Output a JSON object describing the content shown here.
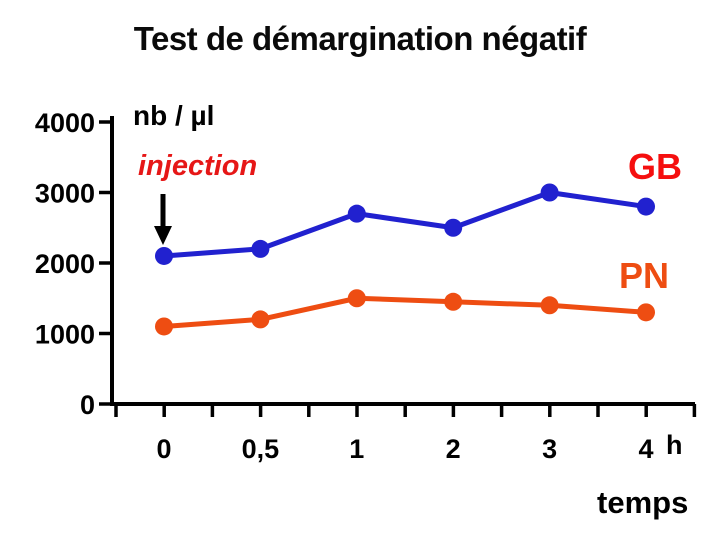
{
  "title": "Test de démargination négatif",
  "chart_data": {
    "type": "line",
    "x": [
      0,
      0.5,
      1,
      2,
      3,
      4
    ],
    "x_tick_labels": [
      "0",
      "0,5",
      "1",
      "2",
      "3",
      "4"
    ],
    "x_unit": "h",
    "xlabel": "temps",
    "ylabel": "nb / µl",
    "ylim": [
      0,
      4000
    ],
    "y_ticks": [
      0,
      1000,
      2000,
      3000,
      4000
    ],
    "y_tick_labels": [
      "0",
      "1000",
      "2000",
      "3000",
      "4000"
    ],
    "grid": false,
    "legend_position": "labels-at-line-ends",
    "series": [
      {
        "name": "GB",
        "line_color": "#2121cf",
        "label_color": "#f50f0f",
        "values": [
          2100,
          2200,
          2700,
          2500,
          3000,
          2800
        ]
      },
      {
        "name": "PN",
        "line_color": "#ee4d12",
        "label_color": "#ee4d12",
        "values": [
          1100,
          1200,
          1500,
          1450,
          1400,
          1300
        ]
      }
    ],
    "annotation": {
      "text": "injection",
      "color": "#e61717",
      "arrow": "down",
      "at_x": 0
    },
    "axis_color": "#000000"
  }
}
